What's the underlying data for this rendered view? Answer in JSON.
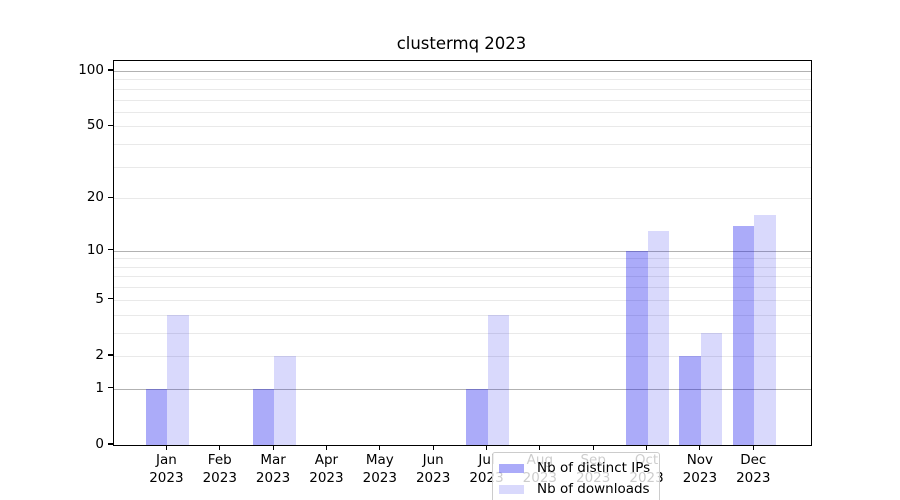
{
  "title": "clustermq 2023",
  "chart_data": {
    "type": "bar",
    "title": "clustermq 2023",
    "categories": [
      "Jan",
      "Feb",
      "Mar",
      "Apr",
      "May",
      "Jun",
      "Jul",
      "Aug",
      "Sep",
      "Oct",
      "Nov",
      "Dec"
    ],
    "category_year": "2023",
    "series": [
      {
        "key": "distinct-ips",
        "name": "Nb of distinct IPs",
        "color": "rgba(0,0,238,0.33)",
        "values": [
          1,
          0,
          1,
          0,
          0,
          0,
          1,
          0,
          0,
          10,
          2,
          14
        ]
      },
      {
        "key": "downloads",
        "name": "Nb of downloads",
        "color": "rgba(0,0,238,0.15)",
        "values": [
          4,
          0,
          2,
          0,
          0,
          0,
          4,
          0,
          0,
          13,
          3,
          16
        ]
      }
    ],
    "xlabel": "",
    "ylabel": "",
    "y_scale": "log1p",
    "ylim": [
      0,
      113
    ],
    "y_ticks": [
      0,
      1,
      2,
      5,
      10,
      20,
      50,
      100
    ],
    "y_gridlines_major": [
      1,
      10,
      100
    ],
    "y_gridlines_minor": [
      2,
      3,
      4,
      5,
      6,
      7,
      8,
      9,
      20,
      30,
      40,
      50,
      60,
      70,
      80,
      90
    ],
    "grid": "on",
    "legend_position": "lower center"
  },
  "colors": {
    "bar_distinct_ips": "rgba(0,0,238,0.33)",
    "bar_downloads": "rgba(0,0,238,0.15)",
    "grid_major": "#b2b2b2",
    "grid_minor": "#e9e9e9",
    "axis": "#000000",
    "legend_border": "#cccccc"
  }
}
